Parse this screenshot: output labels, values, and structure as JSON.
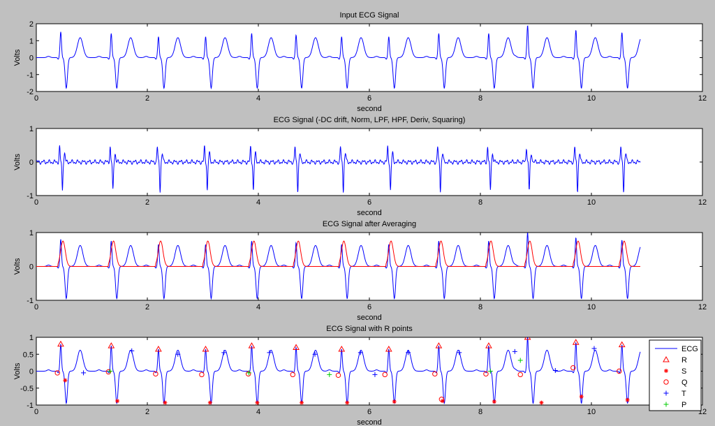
{
  "figure": {
    "background": "#c0c0c0",
    "axes_bg": "#ffffff",
    "ecg_color": "#0000ff",
    "avg_color": "#ff0000",
    "r_color": "#ff0000",
    "s_color": "#ff0000",
    "q_color": "#ff0000",
    "t_color": "#0000ff",
    "p_color": "#00cc00"
  },
  "chart_data": [
    {
      "type": "line",
      "title": "Input ECG Signal",
      "xlabel": "second",
      "ylabel": "Volts",
      "xlim": [
        0,
        12
      ],
      "ylim": [
        -2,
        2
      ],
      "xticks": [
        0,
        2,
        4,
        6,
        8,
        10,
        12
      ],
      "yticks": [
        -2,
        -1,
        0,
        1,
        2
      ],
      "variant": "raw",
      "series": [
        {
          "name": "ECG",
          "color": "#0000ff"
        }
      ]
    },
    {
      "type": "line",
      "title": "ECG Signal (-DC drift, Norm, LPF, HPF, Deriv, Squaring)",
      "xlabel": "second",
      "ylabel": "Volts",
      "xlim": [
        0,
        12
      ],
      "ylim": [
        -1,
        1
      ],
      "xticks": [
        0,
        2,
        4,
        6,
        8,
        10,
        12
      ],
      "yticks": [
        -1,
        0,
        1
      ],
      "variant": "filtered",
      "series": [
        {
          "name": "",
          "color": "#0000ff"
        }
      ]
    },
    {
      "type": "line",
      "title": "ECG Signal after Averaging",
      "xlabel": "second",
      "ylabel": "Volts",
      "xlim": [
        0,
        12
      ],
      "ylim": [
        -1,
        1
      ],
      "xticks": [
        0,
        2,
        4,
        6,
        8,
        10,
        12
      ],
      "yticks": [
        -1,
        0,
        1
      ],
      "variant": "averaged",
      "series": [
        {
          "name": "",
          "color": "#0000ff"
        },
        {
          "name": "",
          "color": "#ff0000"
        }
      ]
    },
    {
      "type": "line",
      "title": "ECG Signal with R points",
      "xlabel": "second",
      "ylabel": "Volts",
      "xlim": [
        0,
        12
      ],
      "ylim": [
        -1,
        1
      ],
      "xticks": [
        0,
        2,
        4,
        6,
        8,
        10,
        12
      ],
      "yticks": [
        -1,
        -0.5,
        0,
        0.5,
        1
      ],
      "variant": "annotated",
      "legend": {
        "placement": "right",
        "entries": [
          {
            "label": "ECG",
            "marker": "line",
            "color": "#0000ff"
          },
          {
            "label": "R",
            "marker": "triangle",
            "color": "#ff0000"
          },
          {
            "label": "S",
            "marker": "asterisk",
            "color": "#ff0000"
          },
          {
            "label": "Q",
            "marker": "circle",
            "color": "#ff0000"
          },
          {
            "label": "T",
            "marker": "plus",
            "color": "#0000ff"
          },
          {
            "label": "P",
            "marker": "plus",
            "color": "#00cc00"
          }
        ]
      },
      "beats": [
        0.44,
        1.35,
        2.2,
        3.05,
        3.88,
        4.68,
        5.5,
        6.35,
        7.25,
        8.15,
        8.85,
        9.72,
        10.55
      ],
      "end_time": 10.88,
      "R": [
        [
          0.44,
          0.8
        ],
        [
          1.35,
          0.75
        ],
        [
          2.2,
          0.65
        ],
        [
          3.05,
          0.65
        ],
        [
          3.88,
          0.75
        ],
        [
          4.68,
          0.7
        ],
        [
          5.5,
          0.65
        ],
        [
          6.35,
          0.65
        ],
        [
          7.25,
          0.75
        ],
        [
          8.15,
          0.75
        ],
        [
          8.85,
          1.0
        ],
        [
          9.72,
          0.85
        ],
        [
          10.55,
          0.78
        ]
      ],
      "S": [
        [
          0.52,
          -0.27
        ],
        [
          1.46,
          -0.88
        ],
        [
          2.32,
          -0.93
        ],
        [
          3.13,
          -0.93
        ],
        [
          3.98,
          -0.93
        ],
        [
          4.78,
          -0.93
        ],
        [
          5.6,
          -0.93
        ],
        [
          6.45,
          -0.9
        ],
        [
          7.32,
          -0.88
        ],
        [
          8.25,
          -0.9
        ],
        [
          9.1,
          -0.93
        ],
        [
          9.82,
          -0.75
        ],
        [
          10.65,
          -0.85
        ]
      ],
      "Q": [
        [
          0.38,
          -0.05
        ],
        [
          1.3,
          -0.02
        ],
        [
          2.15,
          -0.08
        ],
        [
          2.98,
          -0.1
        ],
        [
          3.82,
          -0.08
        ],
        [
          4.62,
          -0.1
        ],
        [
          5.44,
          -0.12
        ],
        [
          6.28,
          -0.1
        ],
        [
          7.18,
          -0.08
        ],
        [
          8.1,
          -0.08
        ],
        [
          8.72,
          -0.1
        ],
        [
          9.67,
          0.1
        ],
        [
          10.5,
          0.0
        ],
        [
          7.3,
          -0.83
        ]
      ],
      "T": [
        [
          0.85,
          -0.05
        ],
        [
          1.72,
          0.6
        ],
        [
          2.55,
          0.5
        ],
        [
          3.38,
          0.55
        ],
        [
          4.2,
          0.55
        ],
        [
          5.02,
          0.5
        ],
        [
          5.84,
          0.55
        ],
        [
          6.7,
          0.55
        ],
        [
          7.62,
          0.55
        ],
        [
          8.62,
          0.58
        ],
        [
          9.35,
          0.02
        ],
        [
          10.05,
          0.67
        ],
        [
          6.1,
          -0.1
        ]
      ],
      "P": [
        [
          5.28,
          -0.1
        ],
        [
          8.18,
          0.0
        ],
        [
          8.72,
          0.32
        ],
        [
          3.83,
          -0.05
        ],
        [
          1.33,
          0.0
        ]
      ]
    }
  ]
}
